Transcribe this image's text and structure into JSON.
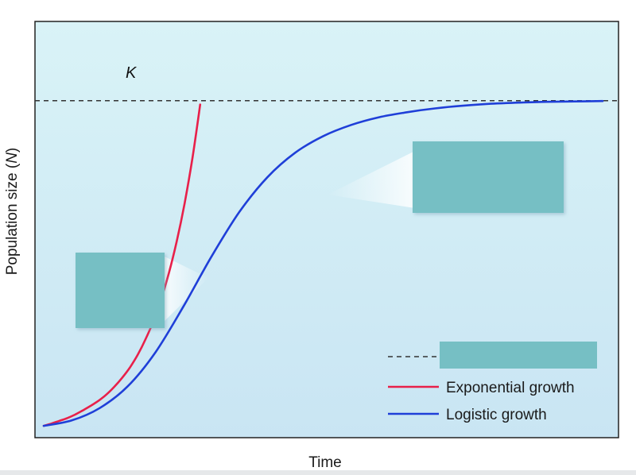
{
  "chart_data": {
    "type": "line",
    "xlabel": "Time",
    "ylabel_parts": [
      "Population size (",
      "N",
      ")"
    ],
    "k_label": "K",
    "legend": [
      {
        "label": "Exponential growth",
        "color": "#e8204a",
        "style": "solid"
      },
      {
        "label": "Logistic growth",
        "color": "#1f3fd8",
        "style": "solid"
      },
      {
        "label": "",
        "color": "#333333",
        "style": "dashed"
      }
    ],
    "legend_placement": "bottom-right",
    "xlim": [
      0,
      100
    ],
    "ylim": [
      0,
      100
    ],
    "carrying_capacity": 85,
    "series": [
      {
        "name": "Exponential growth",
        "color": "#e8204a",
        "x": [
          0,
          5,
          10,
          15,
          20,
          25,
          30,
          35,
          40,
          45,
          50,
          55,
          60,
          65,
          70,
          75,
          80,
          85,
          90,
          95,
          100
        ],
        "y": [
          0.6,
          1.2,
          1.9,
          2.6,
          3.5,
          4.6,
          5.8,
          7.1,
          8.7,
          10.7,
          13.0,
          15.7,
          19.0,
          23.0,
          27.7,
          33.4,
          40.3,
          48.5,
          58.3,
          70.0,
          84.0
        ]
      },
      {
        "name": "Logistic growth",
        "color": "#1f3fd8",
        "x": [
          0,
          5,
          10,
          15,
          20,
          25,
          30,
          35,
          40,
          45,
          50,
          55,
          60,
          65,
          70,
          75,
          80,
          85,
          90,
          95,
          100
        ],
        "y": [
          0.6,
          2.0,
          5.2,
          10.8,
          19.7,
          31.6,
          44.5,
          56.1,
          65.1,
          71.5,
          75.8,
          78.7,
          80.7,
          82.0,
          83.0,
          83.7,
          84.2,
          84.5,
          84.7,
          84.8,
          84.9
        ]
      }
    ],
    "series_x_span": [
      [
        0,
        28
      ],
      [
        0,
        100
      ]
    ],
    "blank_label_box_color": "#76bfc4",
    "plot_background": [
      "#d9f3f7",
      "#c9e5f3"
    ]
  }
}
